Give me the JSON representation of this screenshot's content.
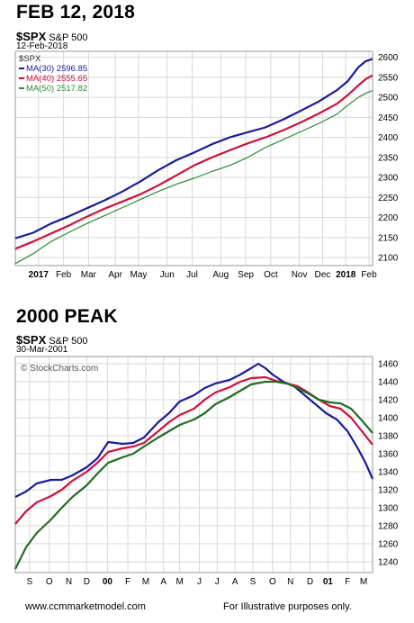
{
  "footer": {
    "website": "www.ccmmarketmodel.com",
    "disclaimer": "For Illustrative purposes only."
  },
  "colors": {
    "ma30": "#1a1aa0",
    "ma40": "#d0103a",
    "ma50_top": "#2e8b2e",
    "ma50_bottom": "#1f6e1f",
    "grid": "#d8d8d8",
    "frame": "#999999"
  },
  "chart_data": [
    {
      "type": "line",
      "heading": "FEB 12, 2018",
      "symbol": "$SPX",
      "symbol_desc": "S&P 500",
      "date_label": "12-Feb-2018",
      "legend_title": "$SPX",
      "legend_position": "top-left",
      "grid": true,
      "ylim": [
        2080,
        2615
      ],
      "y_ticks": [
        2100,
        2150,
        2200,
        2250,
        2300,
        2350,
        2400,
        2450,
        2500,
        2550,
        2600
      ],
      "x_ticks": [
        {
          "label": "2017",
          "pos": 0.065,
          "bold": true
        },
        {
          "label": "Feb",
          "pos": 0.135
        },
        {
          "label": "Mar",
          "pos": 0.205
        },
        {
          "label": "Apr",
          "pos": 0.28
        },
        {
          "label": "May",
          "pos": 0.345
        },
        {
          "label": "Jun",
          "pos": 0.425
        },
        {
          "label": "Jul",
          "pos": 0.495
        },
        {
          "label": "Aug",
          "pos": 0.575
        },
        {
          "label": "Sep",
          "pos": 0.645
        },
        {
          "label": "Oct",
          "pos": 0.715
        },
        {
          "label": "Nov",
          "pos": 0.795
        },
        {
          "label": "Dec",
          "pos": 0.86
        },
        {
          "label": "2018",
          "pos": 0.925,
          "bold": true
        },
        {
          "label": "Feb",
          "pos": 0.99
        }
      ],
      "series": [
        {
          "name": "MA(30)",
          "label": "MA(30) 2596.85",
          "color": "#1a1aa0",
          "width": 2.2,
          "values": [
            [
              0,
              2148
            ],
            [
              0.05,
              2162
            ],
            [
              0.1,
              2185
            ],
            [
              0.15,
              2203
            ],
            [
              0.2,
              2223
            ],
            [
              0.25,
              2243
            ],
            [
              0.3,
              2265
            ],
            [
              0.35,
              2290
            ],
            [
              0.4,
              2318
            ],
            [
              0.45,
              2343
            ],
            [
              0.5,
              2362
            ],
            [
              0.55,
              2383
            ],
            [
              0.6,
              2400
            ],
            [
              0.65,
              2413
            ],
            [
              0.7,
              2425
            ],
            [
              0.75,
              2445
            ],
            [
              0.8,
              2467
            ],
            [
              0.85,
              2490
            ],
            [
              0.9,
              2518
            ],
            [
              0.93,
              2540
            ],
            [
              0.96,
              2575
            ],
            [
              0.98,
              2590
            ],
            [
              1,
              2596
            ]
          ]
        },
        {
          "name": "MA(40)",
          "label": "MA(40) 2555.65",
          "color": "#d0103a",
          "width": 2.2,
          "values": [
            [
              0,
              2122
            ],
            [
              0.05,
              2140
            ],
            [
              0.1,
              2160
            ],
            [
              0.15,
              2180
            ],
            [
              0.2,
              2202
            ],
            [
              0.25,
              2222
            ],
            [
              0.3,
              2240
            ],
            [
              0.35,
              2258
            ],
            [
              0.4,
              2280
            ],
            [
              0.45,
              2305
            ],
            [
              0.5,
              2330
            ],
            [
              0.55,
              2350
            ],
            [
              0.6,
              2368
            ],
            [
              0.65,
              2385
            ],
            [
              0.7,
              2400
            ],
            [
              0.75,
              2418
            ],
            [
              0.8,
              2438
            ],
            [
              0.85,
              2460
            ],
            [
              0.9,
              2484
            ],
            [
              0.93,
              2505
            ],
            [
              0.96,
              2530
            ],
            [
              0.98,
              2545
            ],
            [
              1,
              2555
            ]
          ]
        },
        {
          "name": "MA(50)",
          "label": "MA(50) 2517.82",
          "color": "#2e8b2e",
          "width": 1.2,
          "values": [
            [
              0,
              2085
            ],
            [
              0.05,
              2110
            ],
            [
              0.1,
              2140
            ],
            [
              0.15,
              2163
            ],
            [
              0.2,
              2185
            ],
            [
              0.25,
              2205
            ],
            [
              0.3,
              2225
            ],
            [
              0.35,
              2245
            ],
            [
              0.4,
              2265
            ],
            [
              0.45,
              2283
            ],
            [
              0.5,
              2298
            ],
            [
              0.55,
              2315
            ],
            [
              0.6,
              2330
            ],
            [
              0.65,
              2350
            ],
            [
              0.7,
              2375
            ],
            [
              0.75,
              2395
            ],
            [
              0.8,
              2415
            ],
            [
              0.85,
              2435
            ],
            [
              0.9,
              2458
            ],
            [
              0.93,
              2480
            ],
            [
              0.96,
              2500
            ],
            [
              0.98,
              2510
            ],
            [
              1,
              2517
            ]
          ]
        }
      ]
    },
    {
      "type": "line",
      "heading": "2000 PEAK",
      "symbol": "$SPX",
      "symbol_desc": "S&P 500",
      "date_label": "30-Mar-2001",
      "watermark": "© StockCharts.com",
      "grid": true,
      "ylim": [
        1228,
        1468
      ],
      "y_ticks": [
        1240,
        1260,
        1280,
        1300,
        1320,
        1340,
        1360,
        1380,
        1400,
        1420,
        1440,
        1460
      ],
      "x_ticks": [
        {
          "label": "S",
          "pos": 0.04
        },
        {
          "label": "O",
          "pos": 0.095
        },
        {
          "label": "N",
          "pos": 0.15
        },
        {
          "label": "D",
          "pos": 0.2
        },
        {
          "label": "00",
          "pos": 0.258,
          "bold": true
        },
        {
          "label": "F",
          "pos": 0.315
        },
        {
          "label": "M",
          "pos": 0.365
        },
        {
          "label": "A",
          "pos": 0.415
        },
        {
          "label": "M",
          "pos": 0.46
        },
        {
          "label": "J",
          "pos": 0.515
        },
        {
          "label": "J",
          "pos": 0.565
        },
        {
          "label": "A",
          "pos": 0.615
        },
        {
          "label": "S",
          "pos": 0.665
        },
        {
          "label": "O",
          "pos": 0.72
        },
        {
          "label": "N",
          "pos": 0.77
        },
        {
          "label": "D",
          "pos": 0.825
        },
        {
          "label": "01",
          "pos": 0.875,
          "bold": true
        },
        {
          "label": "F",
          "pos": 0.93
        },
        {
          "label": "M",
          "pos": 0.975
        }
      ],
      "series": [
        {
          "name": "",
          "color": "#1a1aa0",
          "width": 2.2,
          "values": [
            [
              0,
              1312
            ],
            [
              0.03,
              1318
            ],
            [
              0.06,
              1327
            ],
            [
              0.1,
              1331
            ],
            [
              0.13,
              1331
            ],
            [
              0.16,
              1336
            ],
            [
              0.2,
              1345
            ],
            [
              0.23,
              1355
            ],
            [
              0.26,
              1373
            ],
            [
              0.3,
              1371
            ],
            [
              0.33,
              1372
            ],
            [
              0.36,
              1378
            ],
            [
              0.4,
              1395
            ],
            [
              0.43,
              1405
            ],
            [
              0.46,
              1418
            ],
            [
              0.5,
              1425
            ],
            [
              0.53,
              1433
            ],
            [
              0.56,
              1438
            ],
            [
              0.6,
              1442
            ],
            [
              0.63,
              1448
            ],
            [
              0.66,
              1455
            ],
            [
              0.68,
              1460
            ],
            [
              0.7,
              1455
            ],
            [
              0.72,
              1448
            ],
            [
              0.75,
              1440
            ],
            [
              0.78,
              1435
            ],
            [
              0.81,
              1425
            ],
            [
              0.84,
              1415
            ],
            [
              0.87,
              1405
            ],
            [
              0.9,
              1398
            ],
            [
              0.93,
              1385
            ],
            [
              0.96,
              1365
            ],
            [
              0.98,
              1350
            ],
            [
              1,
              1332
            ]
          ]
        },
        {
          "name": "",
          "color": "#d0103a",
          "width": 2.2,
          "values": [
            [
              0,
              1282
            ],
            [
              0.03,
              1296
            ],
            [
              0.06,
              1306
            ],
            [
              0.1,
              1313
            ],
            [
              0.13,
              1320
            ],
            [
              0.16,
              1330
            ],
            [
              0.2,
              1340
            ],
            [
              0.23,
              1350
            ],
            [
              0.26,
              1362
            ],
            [
              0.3,
              1366
            ],
            [
              0.33,
              1368
            ],
            [
              0.36,
              1372
            ],
            [
              0.4,
              1385
            ],
            [
              0.43,
              1395
            ],
            [
              0.46,
              1403
            ],
            [
              0.5,
              1410
            ],
            [
              0.53,
              1420
            ],
            [
              0.56,
              1428
            ],
            [
              0.6,
              1434
            ],
            [
              0.63,
              1440
            ],
            [
              0.66,
              1444
            ],
            [
              0.7,
              1445
            ],
            [
              0.73,
              1441
            ],
            [
              0.76,
              1438
            ],
            [
              0.79,
              1435
            ],
            [
              0.82,
              1428
            ],
            [
              0.85,
              1420
            ],
            [
              0.88,
              1413
            ],
            [
              0.91,
              1410
            ],
            [
              0.94,
              1400
            ],
            [
              0.97,
              1385
            ],
            [
              1,
              1370
            ]
          ]
        },
        {
          "name": "",
          "color": "#1f6e1f",
          "width": 2.2,
          "values": [
            [
              0,
              1232
            ],
            [
              0.03,
              1256
            ],
            [
              0.06,
              1272
            ],
            [
              0.1,
              1287
            ],
            [
              0.13,
              1300
            ],
            [
              0.16,
              1312
            ],
            [
              0.2,
              1325
            ],
            [
              0.23,
              1338
            ],
            [
              0.26,
              1350
            ],
            [
              0.3,
              1356
            ],
            [
              0.33,
              1360
            ],
            [
              0.36,
              1368
            ],
            [
              0.4,
              1378
            ],
            [
              0.43,
              1385
            ],
            [
              0.46,
              1392
            ],
            [
              0.5,
              1398
            ],
            [
              0.53,
              1405
            ],
            [
              0.56,
              1415
            ],
            [
              0.6,
              1423
            ],
            [
              0.63,
              1430
            ],
            [
              0.66,
              1437
            ],
            [
              0.7,
              1440
            ],
            [
              0.73,
              1440
            ],
            [
              0.76,
              1438
            ],
            [
              0.79,
              1433
            ],
            [
              0.82,
              1427
            ],
            [
              0.85,
              1420
            ],
            [
              0.88,
              1417
            ],
            [
              0.91,
              1416
            ],
            [
              0.94,
              1410
            ],
            [
              0.97,
              1397
            ],
            [
              1,
              1383
            ]
          ]
        }
      ]
    }
  ]
}
